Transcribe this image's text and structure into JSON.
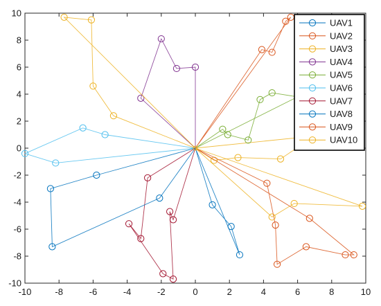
{
  "chart_data": {
    "type": "line",
    "xlim": [
      -10,
      10
    ],
    "ylim": [
      -10,
      10
    ],
    "xticks": [
      -10,
      -8,
      -6,
      -4,
      -2,
      0,
      2,
      4,
      6,
      8,
      10
    ],
    "yticks": [
      -10,
      -8,
      -6,
      -4,
      -2,
      0,
      2,
      4,
      6,
      8,
      10
    ],
    "grid": false,
    "marker": "circle",
    "legend_position": "top-right",
    "series": [
      {
        "name": "UAV1",
        "color": "#0072BD",
        "points": [
          [
            0,
            0
          ],
          [
            1.0,
            -4.2
          ],
          [
            2.1,
            -5.8
          ],
          [
            2.6,
            -7.9
          ],
          [
            0,
            0
          ]
        ]
      },
      {
        "name": "UAV2",
        "color": "#D95319",
        "points": [
          [
            0,
            0
          ],
          [
            3.9,
            7.3
          ],
          [
            4.5,
            7.1
          ],
          [
            5.3,
            9.4
          ],
          [
            5.6,
            9.7
          ],
          [
            0,
            0
          ]
        ]
      },
      {
        "name": "UAV3",
        "color": "#EDB120",
        "points": [
          [
            0,
            0
          ],
          [
            1.1,
            -0.9
          ],
          [
            2.5,
            -0.7
          ],
          [
            5.0,
            -0.8
          ],
          [
            7.0,
            0.9
          ],
          [
            0,
            0
          ]
        ]
      },
      {
        "name": "UAV4",
        "color": "#7E2F8E",
        "points": [
          [
            0,
            0
          ],
          [
            0,
            6.0
          ],
          [
            -1.1,
            5.9
          ],
          [
            -2.0,
            8.1
          ],
          [
            -3.2,
            3.7
          ],
          [
            0,
            0
          ]
        ]
      },
      {
        "name": "UAV5",
        "color": "#77AC30",
        "points": [
          [
            0,
            0
          ],
          [
            1.6,
            1.4
          ],
          [
            1.9,
            1.0
          ],
          [
            3.1,
            0.6
          ],
          [
            3.8,
            3.6
          ],
          [
            4.5,
            4.1
          ],
          [
            6.0,
            3.8
          ],
          [
            0,
            0
          ]
        ]
      },
      {
        "name": "UAV6",
        "color": "#4DBEEE",
        "points": [
          [
            0,
            0
          ],
          [
            -5.3,
            1.0
          ],
          [
            -6.6,
            1.5
          ],
          [
            -10.0,
            -0.4
          ],
          [
            -8.2,
            -1.1
          ],
          [
            0,
            0
          ]
        ]
      },
      {
        "name": "UAV7",
        "color": "#A2142F",
        "points": [
          [
            0,
            0
          ],
          [
            -2.8,
            -2.2
          ],
          [
            -3.2,
            -6.7
          ],
          [
            -3.9,
            -5.6
          ],
          [
            -1.9,
            -9.3
          ],
          [
            -1.3,
            -9.7
          ],
          [
            -1.5,
            -4.7
          ],
          [
            -1.3,
            -5.3
          ],
          [
            0,
            0
          ]
        ]
      },
      {
        "name": "UAV8",
        "color": "#0072BD",
        "points": [
          [
            0,
            0
          ],
          [
            -5.8,
            -2.0
          ],
          [
            -8.5,
            -3.0
          ],
          [
            -8.4,
            -7.3
          ],
          [
            -2.1,
            -3.7
          ],
          [
            0,
            0
          ]
        ]
      },
      {
        "name": "UAV9",
        "color": "#D95319",
        "points": [
          [
            0,
            0
          ],
          [
            4.2,
            -2.6
          ],
          [
            4.7,
            -5.7
          ],
          [
            4.8,
            -8.6
          ],
          [
            6.5,
            -7.3
          ],
          [
            8.8,
            -7.9
          ],
          [
            9.3,
            -7.9
          ],
          [
            6.7,
            -5.2
          ],
          [
            0,
            0
          ]
        ]
      },
      {
        "name": "UAV10",
        "color": "#EDB120",
        "points": [
          [
            0,
            0
          ],
          [
            -4.8,
            2.4
          ],
          [
            -6.0,
            4.6
          ],
          [
            -6.1,
            9.5
          ],
          [
            -7.7,
            9.7
          ],
          [
            0,
            0
          ],
          [
            4.5,
            -5.1
          ],
          [
            5.8,
            -4.1
          ],
          [
            9.8,
            -4.3
          ],
          [
            0,
            0
          ]
        ]
      }
    ]
  }
}
